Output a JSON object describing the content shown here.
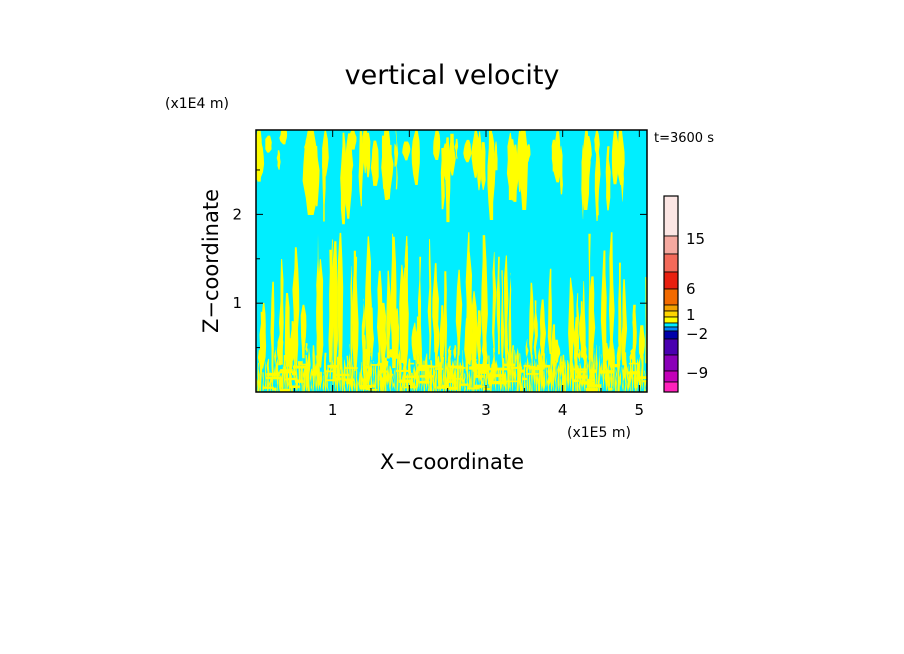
{
  "chart_data": {
    "type": "heatmap",
    "title": "vertical velocity",
    "xlabel": "X−coordinate",
    "ylabel": "Z−coordinate",
    "x_unit": "(x1E5 m)",
    "y_unit": "(x1E4 m)",
    "time_label": "t=3600 s",
    "xlim": [
      0,
      5.1
    ],
    "ylim": [
      0,
      2.95
    ],
    "x_ticks": [
      1,
      2,
      3,
      4,
      5
    ],
    "y_ticks": [
      1,
      2
    ],
    "grid": false,
    "colorbar": {
      "labels": [
        {
          "value": 15,
          "text": "15"
        },
        {
          "value": 6,
          "text": "6"
        },
        {
          "value": 1,
          "text": "1"
        },
        {
          "value": -2,
          "text": "−2"
        },
        {
          "value": -9,
          "text": "−9"
        }
      ],
      "bins": [
        {
          "color": "#fce6e4"
        },
        {
          "color": "#f5a9a0"
        },
        {
          "color": "#f36a5a"
        },
        {
          "color": "#e82010"
        },
        {
          "color": "#f26a00"
        },
        {
          "color": "#f2a200"
        },
        {
          "color": "#ffd500"
        },
        {
          "color": "#ffff00"
        },
        {
          "color": "#00eeff"
        },
        {
          "color": "#0088ff"
        },
        {
          "color": "#0000aa"
        },
        {
          "color": "#4a00b0"
        },
        {
          "color": "#8a00b8"
        },
        {
          "color": "#c400b8"
        },
        {
          "color": "#ff22bb"
        }
      ]
    },
    "field_colors": {
      "background": "#00eeff",
      "updraft": "#ffff00"
    }
  }
}
